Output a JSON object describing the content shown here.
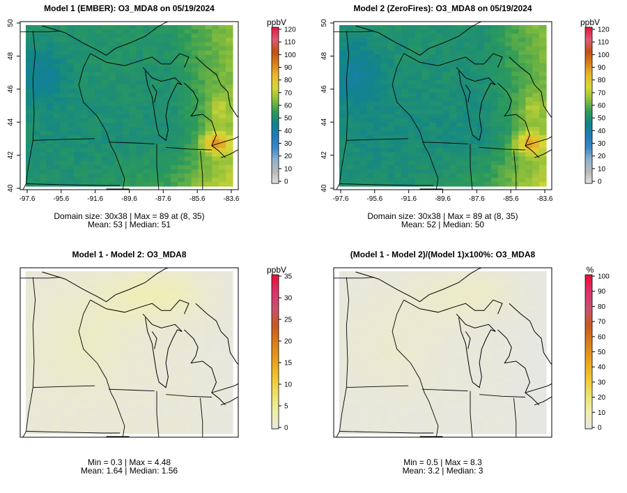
{
  "chart_data": [
    {
      "type": "heatmap",
      "title": "Model 1 (EMBER): O3_MDA8 on 05/19/2024",
      "xticks": [
        "-97.6",
        "-95.6",
        "-91.6",
        "-89.6",
        "-87.6",
        "-85.6",
        "-83.6"
      ],
      "yticks": [
        "40",
        "42",
        "44",
        "46",
        "48",
        "50"
      ],
      "grid_dims": "30x38",
      "legend": {
        "unit": "ppbV",
        "range": [
          0,
          120
        ],
        "ticks": [
          "0",
          "10",
          "20",
          "30",
          "40",
          "50",
          "60",
          "70",
          "80",
          "90",
          "100",
          "110",
          "120"
        ]
      },
      "field_range": [
        40,
        89
      ],
      "stats": [
        "Domain size: 30x38 | Max = 89 at (8, 35)",
        "Mean: 53 |  Median: 51"
      ]
    },
    {
      "type": "heatmap",
      "title": "Model 2 (ZeroFires): O3_MDA8 on 05/19/2024",
      "xticks": [
        "-97.6",
        "-95.6",
        "-91.6",
        "-89.6",
        "-87.6",
        "-85.6",
        "-83.6"
      ],
      "yticks": [
        "40",
        "42",
        "44",
        "46",
        "48",
        "50"
      ],
      "grid_dims": "30x38",
      "legend": {
        "unit": "ppbV",
        "range": [
          0,
          120
        ],
        "ticks": [
          "0",
          "10",
          "20",
          "30",
          "40",
          "50",
          "60",
          "70",
          "80",
          "90",
          "100",
          "110",
          "120"
        ]
      },
      "field_range": [
        40,
        89
      ],
      "stats": [
        "Domain size: 30x38 | Max = 89 at (8, 35)",
        "Mean: 52 |  Median: 50"
      ]
    },
    {
      "type": "heatmap",
      "title": "Model 1 - Model 2: O3_MDA8",
      "legend": {
        "unit": "ppbV",
        "range": [
          0,
          35
        ],
        "ticks": [
          "0",
          "5",
          "10",
          "15",
          "20",
          "25",
          "30",
          "35"
        ]
      },
      "field_range": [
        0.3,
        4.48
      ],
      "stats": [
        "Min = 0.3 | Max = 4.48",
        "Mean: 1.64 |  Median: 1.56"
      ]
    },
    {
      "type": "heatmap",
      "title": "(Model 1 - Model 2)/(Model 1)x100%: O3_MDA8",
      "legend": {
        "unit": "%",
        "range": [
          0,
          100
        ],
        "ticks": [
          "0",
          "10",
          "20",
          "30",
          "40",
          "50",
          "60",
          "70",
          "80",
          "90",
          "100"
        ]
      },
      "field_range": [
        0.5,
        8.3
      ],
      "stats": [
        "Min = 0.5 | Max = 8.3",
        "Mean: 3.2 |  Median: 3"
      ]
    }
  ],
  "colors": {
    "abs_scale": [
      "#e3e3e3",
      "#b8b8b8",
      "#8fb3d0",
      "#3a87c6",
      "#1f7cb4",
      "#11848c",
      "#2e9b58",
      "#8cbe3a",
      "#d6d837",
      "#e8b92b",
      "#d9801c",
      "#c24f13",
      "#d95c77",
      "#e8163e"
    ],
    "diff_scale": [
      "#e6e6e6",
      "#f1efad",
      "#ece36a",
      "#f0c631",
      "#e9a01c",
      "#d9801c",
      "#c85a20",
      "#c9526b",
      "#d9336b",
      "#ea1033"
    ],
    "pct_scale": [
      "#e6e6e6",
      "#f1efad",
      "#ece36a",
      "#f0c631",
      "#e9a01c",
      "#d9801c",
      "#c85a20",
      "#c9526b",
      "#d9336b",
      "#ea1033"
    ],
    "outline": "#000000"
  }
}
